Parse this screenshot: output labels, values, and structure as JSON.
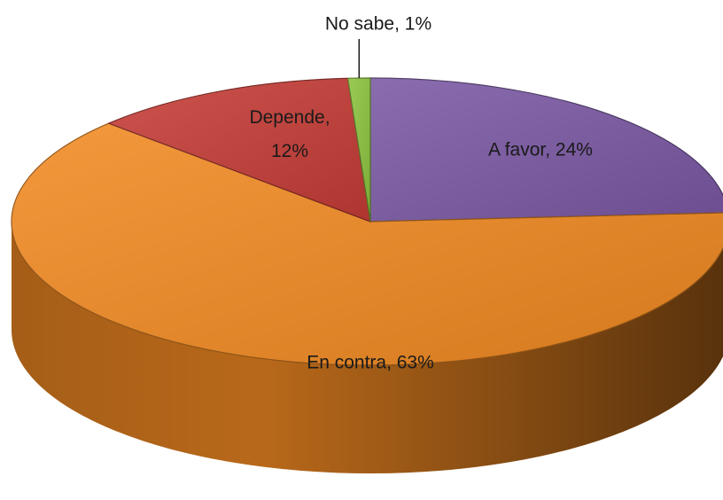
{
  "chart_data": {
    "type": "pie",
    "three_d": true,
    "values": [
      24,
      63,
      12,
      1
    ],
    "value_labels": [
      "A favor, 24%",
      "En contra, 63%",
      "Depende, 12%",
      "No sabe, 1%"
    ],
    "colors": [
      "#7a58a4",
      "#f28a22",
      "#c63c36",
      "#8dc43f"
    ]
  }
}
